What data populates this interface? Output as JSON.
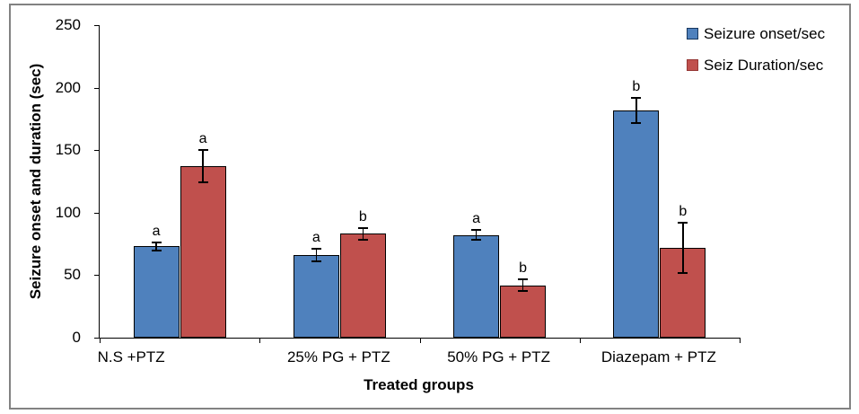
{
  "chart_data": {
    "type": "bar",
    "title": "",
    "xlabel": "Treated groups",
    "ylabel": "Seizure onset and duration (sec)",
    "categories": [
      "N.S +PTZ",
      "25% PG + PTZ",
      "50% PG + PTZ",
      "Diazepam + PTZ"
    ],
    "series": [
      {
        "name": "Seizure onset/sec",
        "color": "#4F81BD",
        "swatch_border": "#17375E",
        "values": [
          73,
          66,
          82,
          182
        ],
        "errors": [
          3,
          5,
          4,
          10
        ],
        "sig_letters": [
          "a",
          "a",
          "a",
          "b"
        ]
      },
      {
        "name": "Seiz Duration/sec",
        "color": "#C0504D",
        "swatch_border": "#953735",
        "values": [
          137,
          83,
          42,
          72
        ],
        "errors": [
          13,
          5,
          5,
          20
        ],
        "sig_letters": [
          "a",
          "b",
          "b",
          "b"
        ]
      }
    ],
    "ylim": [
      0,
      250
    ],
    "yticks": [
      0,
      50,
      100,
      150,
      200,
      250
    ],
    "legend_position": "top-right",
    "grid": false
  },
  "frame": {
    "border_color": "#828282",
    "background": "#FFFFFF"
  }
}
